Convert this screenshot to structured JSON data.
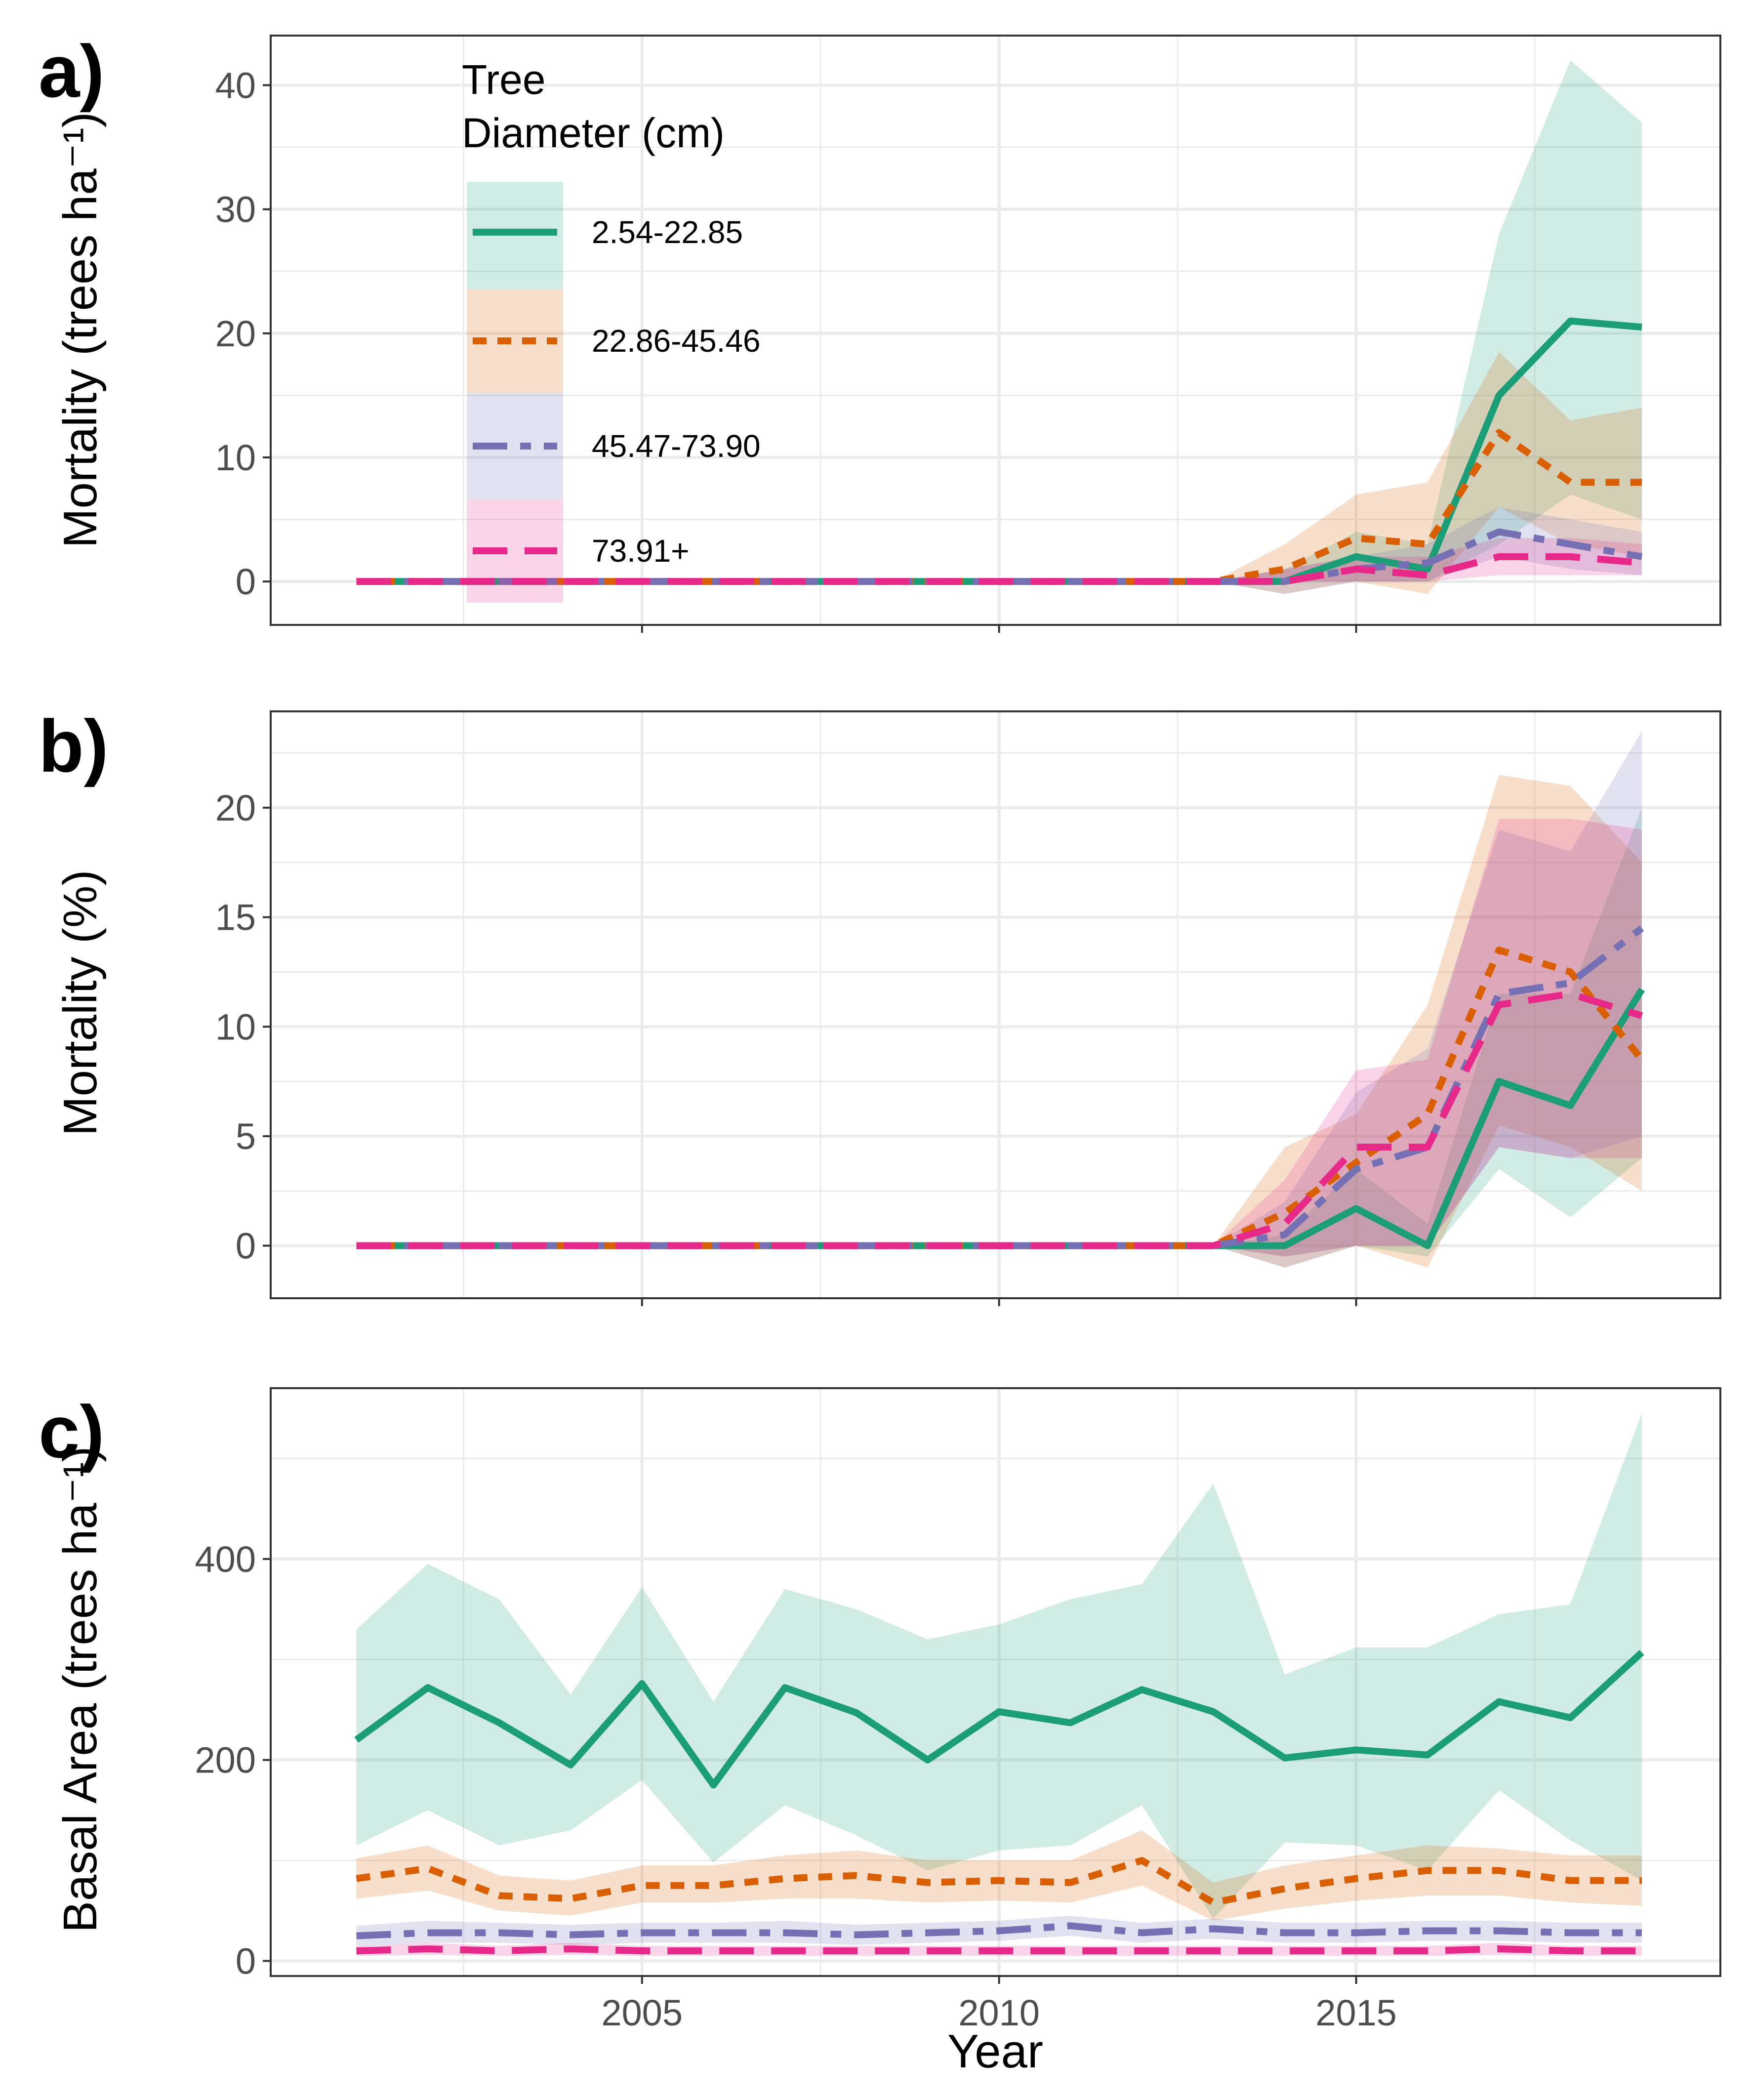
{
  "figure": {
    "xlabel": "Year",
    "x_ticks": [
      2005,
      2010,
      2015
    ],
    "legend": {
      "title_lines": [
        "Tree",
        "Diameter (cm)"
      ],
      "items": [
        "2.54-22.85",
        "22.86-45.46",
        "45.47-73.90",
        "73.91+"
      ]
    },
    "colors": {
      "2.54-22.85": "#1b9e77",
      "22.86-45.46": "#d95f02",
      "45.47-73.90": "#7570b3",
      "73.91+": "#e7298a"
    },
    "line_styles": {
      "2.54-22.85": "solid",
      "22.86-45.46": "dotted",
      "45.47-73.90": "dot-dash",
      "73.91+": "dashed"
    }
  },
  "chart_data": [
    {
      "panel": "a)",
      "type": "line",
      "ylabel": "Mortality (trees ha⁻¹)",
      "x": [
        2001,
        2002,
        2003,
        2004,
        2005,
        2006,
        2007,
        2008,
        2009,
        2010,
        2011,
        2012,
        2013,
        2014,
        2015,
        2016,
        2017,
        2018,
        2019
      ],
      "xlim": [
        1999.8,
        2020.1
      ],
      "ylim": [
        -3.5,
        44
      ],
      "y_ticks": [
        0,
        10,
        20,
        30,
        40
      ],
      "series": [
        {
          "name": "2.54-22.85",
          "values": [
            0,
            0,
            0,
            0,
            0,
            0,
            0,
            0,
            0,
            0,
            0,
            0,
            0,
            0,
            2,
            1,
            15,
            21,
            20.5
          ],
          "lower": [
            0,
            0,
            0,
            0,
            0,
            0,
            0,
            0,
            0,
            0,
            0,
            0,
            0,
            0,
            0,
            0,
            3,
            7,
            5
          ],
          "upper": [
            0,
            0,
            0,
            0,
            0,
            0,
            0,
            0,
            0,
            0,
            0,
            0,
            0,
            1,
            4,
            3,
            28,
            42,
            37
          ]
        },
        {
          "name": "22.86-45.46",
          "values": [
            0,
            0,
            0,
            0,
            0,
            0,
            0,
            0,
            0,
            0,
            0,
            0,
            0,
            1,
            3.5,
            3,
            12,
            8,
            8
          ],
          "lower": [
            0,
            0,
            0,
            0,
            0,
            0,
            0,
            0,
            0,
            0,
            0,
            0,
            0,
            -1,
            0,
            -1,
            6,
            3,
            2
          ],
          "upper": [
            0,
            0,
            0,
            0,
            0,
            0,
            0,
            0,
            0,
            0,
            0,
            0,
            0,
            3,
            7,
            8,
            18.5,
            13,
            14
          ]
        },
        {
          "name": "45.47-73.90",
          "values": [
            0,
            0,
            0,
            0,
            0,
            0,
            0,
            0,
            0,
            0,
            0,
            0,
            0,
            0,
            1,
            1.5,
            4,
            3,
            2
          ],
          "lower": [
            0,
            0,
            0,
            0,
            0,
            0,
            0,
            0,
            0,
            0,
            0,
            0,
            0,
            -1,
            0,
            0,
            2,
            1,
            0.5
          ],
          "upper": [
            0,
            0,
            0,
            0,
            0,
            0,
            0,
            0,
            0,
            0,
            0,
            0,
            0,
            1,
            2,
            3,
            6,
            5,
            4
          ]
        },
        {
          "name": "73.91+",
          "values": [
            0,
            0,
            0,
            0,
            0,
            0,
            0,
            0,
            0,
            0,
            0,
            0,
            0,
            0,
            1,
            0.5,
            2,
            2,
            1.5
          ],
          "lower": [
            0,
            0,
            0,
            0,
            0,
            0,
            0,
            0,
            0,
            0,
            0,
            0,
            0,
            0,
            0,
            0,
            0.5,
            0.5,
            0.5
          ],
          "upper": [
            0,
            0,
            0,
            0,
            0,
            0,
            0,
            0,
            0,
            0,
            0,
            0,
            0,
            1,
            2,
            2,
            3.5,
            3.5,
            3
          ]
        }
      ]
    },
    {
      "panel": "b)",
      "type": "line",
      "ylabel": "Mortality (%)",
      "x": [
        2001,
        2002,
        2003,
        2004,
        2005,
        2006,
        2007,
        2008,
        2009,
        2010,
        2011,
        2012,
        2013,
        2014,
        2015,
        2016,
        2017,
        2018,
        2019
      ],
      "xlim": [
        1999.8,
        2020.1
      ],
      "ylim": [
        -2.4,
        24.4
      ],
      "y_ticks": [
        0,
        5,
        10,
        15,
        20
      ],
      "series": [
        {
          "name": "2.54-22.85",
          "values": [
            0,
            0,
            0,
            0,
            0,
            0,
            0,
            0,
            0,
            0,
            0,
            0,
            0,
            0,
            1.7,
            0,
            7.5,
            6.4,
            11.7
          ],
          "lower": [
            0,
            0,
            0,
            0,
            0,
            0,
            0,
            0,
            0,
            0,
            0,
            0,
            0,
            -0.5,
            0,
            -0.5,
            3.5,
            1.3,
            4
          ],
          "upper": [
            0,
            0,
            0,
            0,
            0,
            0,
            0,
            0,
            0,
            0,
            0,
            0,
            0,
            0.5,
            3.5,
            1,
            11.5,
            11.5,
            20
          ]
        },
        {
          "name": "22.86-45.46",
          "values": [
            0,
            0,
            0,
            0,
            0,
            0,
            0,
            0,
            0,
            0,
            0,
            0,
            0,
            1.5,
            3.8,
            6,
            13.5,
            12.5,
            8.5
          ],
          "lower": [
            0,
            0,
            0,
            0,
            0,
            0,
            0,
            0,
            0,
            0,
            0,
            0,
            0,
            -1,
            0,
            -1,
            5.5,
            4.5,
            2.5
          ],
          "upper": [
            0,
            0,
            0,
            0,
            0,
            0,
            0,
            0,
            0,
            0,
            0,
            0,
            0,
            4.5,
            6,
            11,
            21.5,
            21,
            17.5
          ]
        },
        {
          "name": "45.47-73.90",
          "values": [
            0,
            0,
            0,
            0,
            0,
            0,
            0,
            0,
            0,
            0,
            0,
            0,
            0,
            0.5,
            3.5,
            4.5,
            11.5,
            12,
            14.5
          ],
          "lower": [
            0,
            0,
            0,
            0,
            0,
            0,
            0,
            0,
            0,
            0,
            0,
            0,
            0,
            -1,
            0,
            0,
            4.5,
            4,
            5
          ],
          "upper": [
            0,
            0,
            0,
            0,
            0,
            0,
            0,
            0,
            0,
            0,
            0,
            0,
            0,
            2,
            7,
            9,
            19,
            18,
            23.5
          ]
        },
        {
          "name": "73.91+",
          "values": [
            0,
            0,
            0,
            0,
            0,
            0,
            0,
            0,
            0,
            0,
            0,
            0,
            0,
            1,
            4.5,
            4.5,
            11,
            11.5,
            10.5
          ],
          "lower": [
            0,
            0,
            0,
            0,
            0,
            0,
            0,
            0,
            0,
            0,
            0,
            0,
            0,
            -0.5,
            0,
            0,
            4.5,
            4,
            4
          ],
          "upper": [
            0,
            0,
            0,
            0,
            0,
            0,
            0,
            0,
            0,
            0,
            0,
            0,
            0,
            3,
            8,
            8.5,
            19.5,
            19.5,
            19
          ]
        }
      ]
    },
    {
      "panel": "c)",
      "type": "line",
      "ylabel": "Basal Area (trees ha⁻¹)",
      "x": [
        2001,
        2002,
        2003,
        2004,
        2005,
        2006,
        2007,
        2008,
        2009,
        2010,
        2011,
        2012,
        2013,
        2014,
        2015,
        2016,
        2017,
        2018,
        2019
      ],
      "xlim": [
        1999.8,
        2020.1
      ],
      "ylim": [
        -15,
        570
      ],
      "y_ticks": [
        0,
        200,
        400
      ],
      "series": [
        {
          "name": "2.54-22.85",
          "values": [
            220,
            272,
            237,
            195,
            276,
            175,
            272,
            247,
            200,
            248,
            237,
            270,
            248,
            202,
            210,
            205,
            258,
            242,
            307
          ],
          "lower": [
            115,
            150,
            115,
            130,
            180,
            98,
            155,
            125,
            90,
            110,
            115,
            155,
            42,
            118,
            115,
            90,
            170,
            120,
            80
          ],
          "upper": [
            330,
            395,
            360,
            265,
            372,
            258,
            370,
            350,
            320,
            335,
            360,
            375,
            475,
            285,
            312,
            312,
            345,
            355,
            545
          ]
        },
        {
          "name": "22.86-45.46",
          "values": [
            82,
            92,
            65,
            62,
            75,
            75,
            82,
            85,
            78,
            80,
            78,
            100,
            58,
            72,
            82,
            90,
            90,
            80,
            80
          ],
          "lower": [
            62,
            70,
            50,
            45,
            58,
            58,
            62,
            62,
            58,
            60,
            58,
            75,
            40,
            52,
            60,
            65,
            65,
            58,
            55
          ],
          "upper": [
            102,
            115,
            85,
            80,
            95,
            95,
            105,
            110,
            100,
            100,
            100,
            130,
            78,
            95,
            105,
            115,
            112,
            105,
            105
          ]
        },
        {
          "name": "45.47-73.90",
          "values": [
            25,
            28,
            28,
            26,
            28,
            28,
            28,
            26,
            28,
            30,
            35,
            28,
            32,
            28,
            28,
            30,
            30,
            28,
            28
          ],
          "lower": [
            15,
            18,
            18,
            16,
            18,
            18,
            18,
            16,
            18,
            20,
            25,
            18,
            22,
            18,
            18,
            20,
            20,
            18,
            18
          ],
          "upper": [
            35,
            40,
            38,
            36,
            38,
            38,
            40,
            36,
            38,
            40,
            45,
            38,
            42,
            38,
            38,
            40,
            40,
            38,
            38
          ]
        },
        {
          "name": "73.91+",
          "values": [
            10,
            12,
            10,
            12,
            10,
            10,
            10,
            10,
            10,
            10,
            10,
            10,
            10,
            10,
            10,
            10,
            12,
            10,
            10
          ],
          "lower": [
            5,
            6,
            5,
            6,
            5,
            5,
            5,
            5,
            5,
            5,
            5,
            5,
            5,
            5,
            5,
            5,
            6,
            5,
            5
          ],
          "upper": [
            15,
            18,
            15,
            18,
            15,
            15,
            15,
            15,
            15,
            15,
            15,
            15,
            15,
            15,
            15,
            15,
            18,
            15,
            15
          ]
        }
      ]
    }
  ]
}
